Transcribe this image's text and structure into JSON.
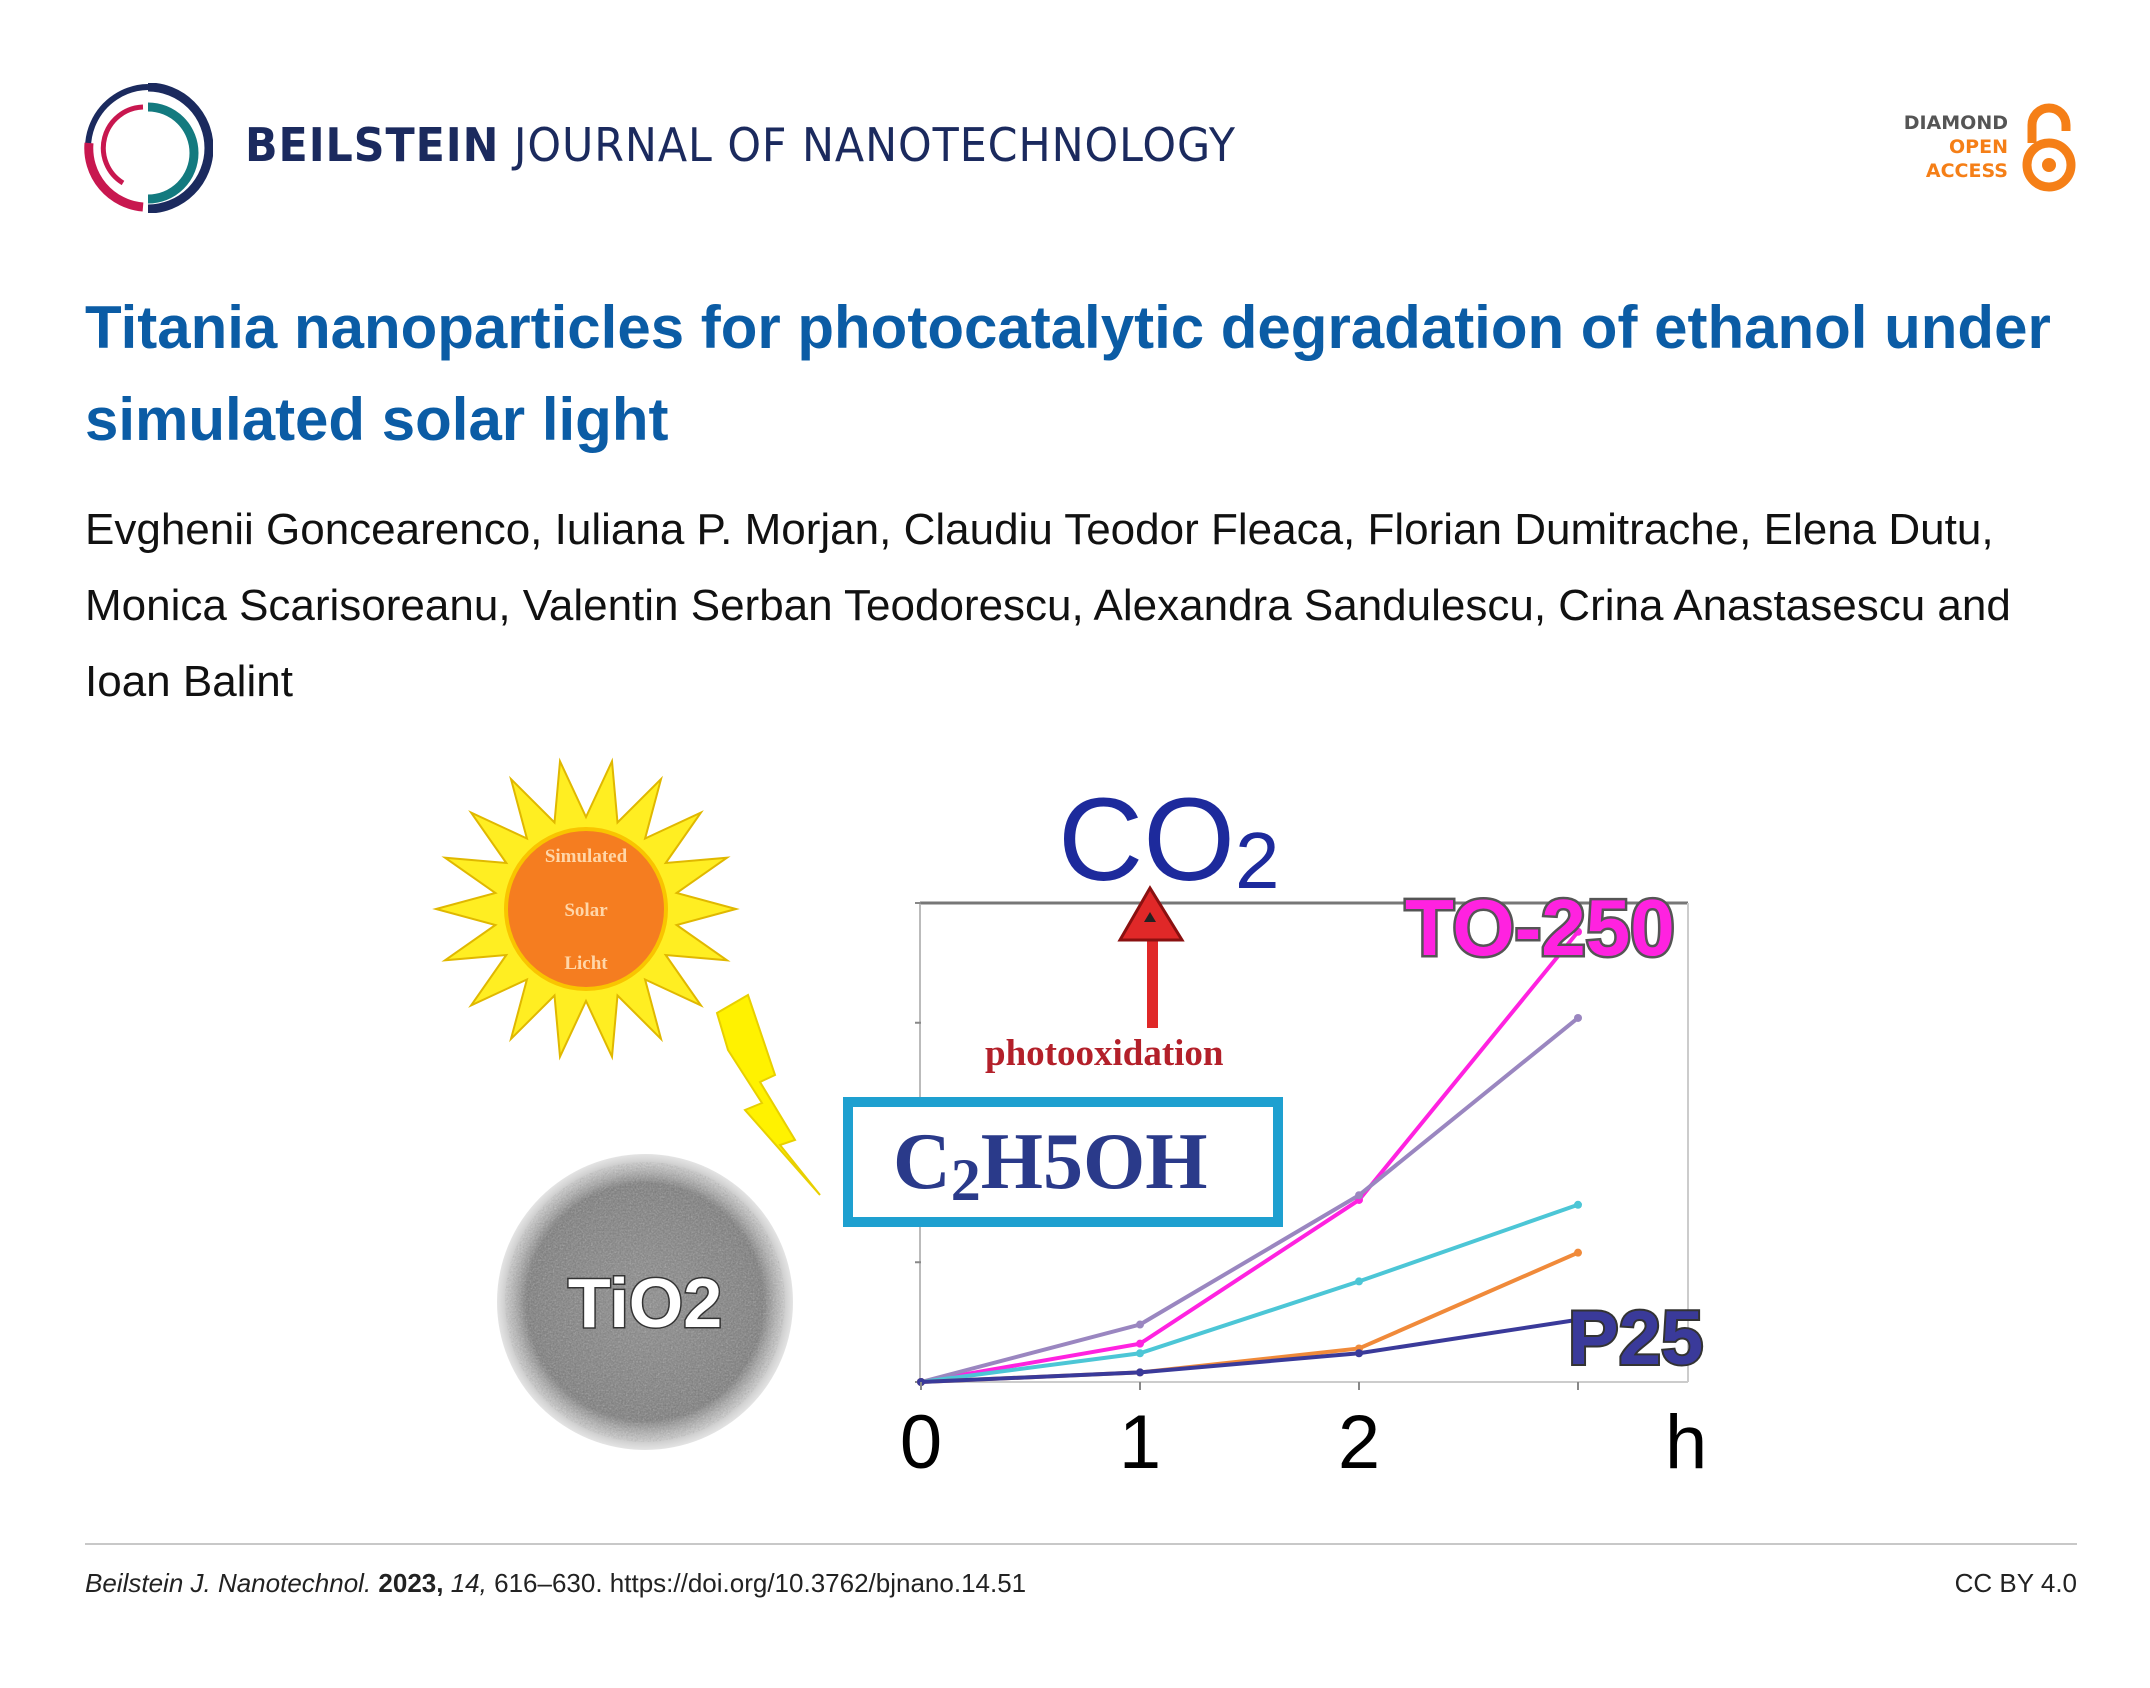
{
  "header": {
    "journal_bold": "BEILSTEIN",
    "journal_rest": "JOURNAL OF NANOTECHNOLOGY",
    "open_access": [
      "DIAMOND",
      "OPEN",
      "ACCESS"
    ],
    "colors": {
      "navy": "#1b2a5e",
      "crimson": "#c8174f",
      "teal": "#137a7f",
      "orange": "#f57f17"
    }
  },
  "article": {
    "title": "Titania nanoparticles for photocatalytic degradation of ethanol under simulated solar light",
    "authors": "Evghenii Goncearenco, Iuliana P. Morjan, Claudiu Teodor Fleaca, Florian Dumitrache, Elena Dutu, Monica Scarisoreanu, Valentin Serban Teodorescu, Alexandra Sandulescu, Crina Anastasescu and Ioan Balint"
  },
  "graphic": {
    "sun_text": [
      "Simulated",
      "Solar",
      "Licht"
    ],
    "particle_label": "TiO2",
    "product": "CO",
    "product_sub": "2",
    "process": "photooxidation",
    "reactant": {
      "c": "C",
      "c_sub": "2",
      "h": "H",
      "h_sub": "5",
      "oh": "OH"
    }
  },
  "chart_data": {
    "type": "line",
    "x": [
      0,
      1,
      2,
      3
    ],
    "xtick_labels": [
      "0",
      "1",
      "2"
    ],
    "xlabel": "h",
    "ylim": [
      0,
      10
    ],
    "grid": false,
    "series": [
      {
        "name": "TO-250",
        "color": "#ff22e0",
        "values": [
          0,
          0.8,
          3.8,
          9.4
        ]
      },
      {
        "color": "#9a86c0",
        "values": [
          0,
          1.2,
          3.9,
          7.6
        ]
      },
      {
        "color": "#4cc6d6",
        "values": [
          0,
          0.6,
          2.1,
          3.7
        ]
      },
      {
        "color": "#f08a3a",
        "values": [
          0,
          0.2,
          0.7,
          2.7
        ]
      },
      {
        "name": "P25",
        "color": "#3a3a9a",
        "values": [
          0,
          0.2,
          0.6,
          1.3
        ]
      }
    ]
  },
  "footer": {
    "journal_abbrev": "Beilstein J. Nanotechnol.",
    "year": "2023,",
    "volume": "14,",
    "pages": "616–630.",
    "doi": "https://doi.org/10.3762/bjnano.14.51",
    "license": "CC BY 4.0"
  }
}
